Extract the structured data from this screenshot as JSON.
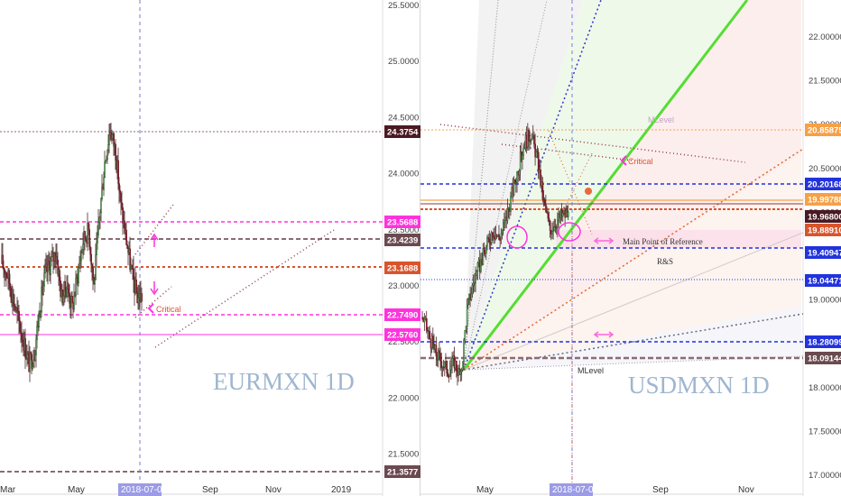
{
  "left": {
    "watermark": "EURMXN 1D",
    "y_ticks": [
      "25.5000",
      "25.0000",
      "24.5000",
      "24.0000",
      "23.5000",
      "23.0000",
      "22.5000",
      "22.0000",
      "21.5000"
    ],
    "x_labels": [
      "Mar",
      "May",
      "Sep",
      "Nov",
      "2019"
    ],
    "date_badge": "2018-07-02",
    "price_badges": [
      {
        "value": "24.3754",
        "color": "#4a1a22"
      },
      {
        "value": "23.5688",
        "color": "#ff33dd"
      },
      {
        "value": "23.4239",
        "color": "#6a4a50"
      },
      {
        "value": "23.1688",
        "color": "#d9542c"
      },
      {
        "value": "22.7490",
        "color": "#ff33dd"
      },
      {
        "value": "22.5760",
        "color": "#ff33dd"
      },
      {
        "value": "21.3577",
        "color": "#6a4a50"
      }
    ],
    "annotations": [
      "Critical"
    ]
  },
  "right": {
    "watermark": "USDMXN 1D",
    "y_ticks": [
      "22.00000",
      "21.50000",
      "21.00000",
      "20.50000",
      "20.00000",
      "19.50000",
      "19.00000",
      "18.50000",
      "18.00000",
      "17.50000",
      "17.00000"
    ],
    "x_labels": [
      "May",
      "Sep",
      "Nov"
    ],
    "date_badge": "2018-07-02",
    "price_badges": [
      {
        "value": "20.85875",
        "color": "#f7a046"
      },
      {
        "value": "20.20168",
        "color": "#2233dd"
      },
      {
        "value": "19.99788",
        "color": "#f7a046"
      },
      {
        "value": "19.96800",
        "color": "#4a1a22"
      },
      {
        "value": "19.88910",
        "color": "#d9542c"
      },
      {
        "value": "19.40947",
        "color": "#2233dd"
      },
      {
        "value": "19.04471",
        "color": "#2233dd"
      },
      {
        "value": "18.28099",
        "color": "#2233dd"
      },
      {
        "value": "18.09144",
        "color": "#6a4a50"
      }
    ],
    "annotations": [
      "MLevel",
      "Critical",
      "Main Point of Reference",
      "R&S",
      "MLevel"
    ]
  },
  "chart_data": [
    {
      "type": "candlestick",
      "title": "EURMXN 1D",
      "x_labels": [
        "Mar",
        "May",
        "Sep",
        "Nov",
        "2019"
      ],
      "ylim": [
        21.3,
        25.6
      ],
      "key_levels": [
        24.3754,
        23.5688,
        23.4239,
        23.1688,
        22.749,
        22.576,
        21.3577
      ],
      "approx_closes": [
        23.2,
        23.1,
        22.9,
        22.7,
        22.5,
        22.3,
        22.4,
        22.8,
        23.1,
        23.2,
        23.3,
        22.9,
        23.0,
        22.8,
        23.1,
        23.4,
        23.5,
        23.0,
        23.6,
        24.1,
        24.4,
        24.2,
        23.7,
        23.4,
        23.1,
        22.9
      ]
    },
    {
      "type": "candlestick",
      "title": "USDMXN 1D",
      "x_labels": [
        "May",
        "Sep",
        "Nov"
      ],
      "ylim": [
        16.8,
        22.3
      ],
      "key_levels": [
        20.85875,
        20.20168,
        19.99788,
        19.968,
        19.8891,
        19.40947,
        19.04471,
        18.28099,
        18.09144
      ],
      "approx_closes": [
        18.8,
        18.6,
        18.4,
        18.3,
        18.2,
        18.3,
        18.1,
        18.9,
        19.2,
        19.4,
        19.6,
        19.8,
        19.7,
        19.9,
        20.2,
        20.5,
        20.8,
        20.9,
        20.6,
        20.1,
        19.8,
        19.9,
        19.97
      ]
    }
  ]
}
